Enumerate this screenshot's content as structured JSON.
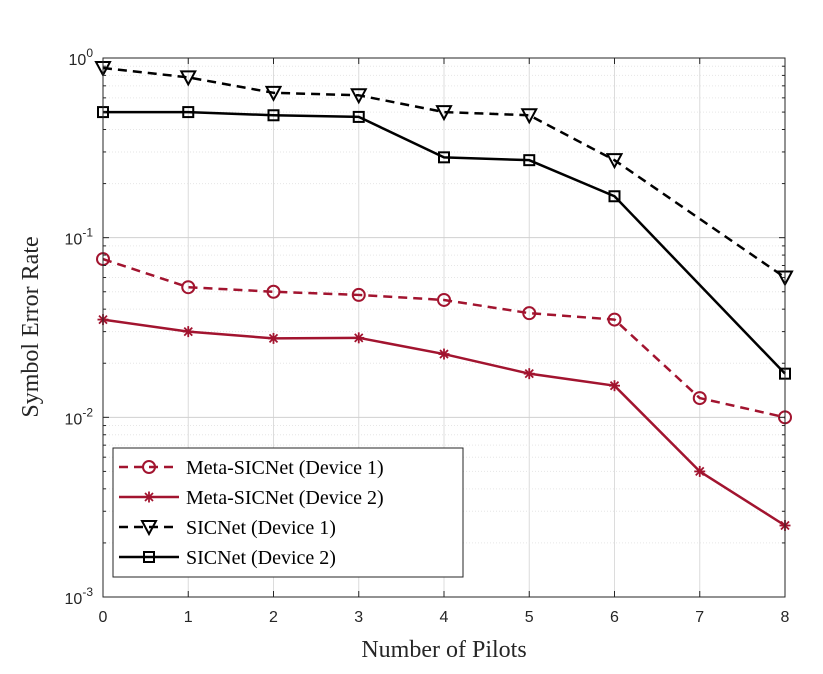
{
  "chart_data": {
    "type": "line",
    "title": "",
    "xlabel": "Number of Pilots",
    "ylabel": "Symbol Error Rate",
    "yscale": "log",
    "xlim": [
      0,
      8
    ],
    "ylim": [
      0.001,
      1
    ],
    "grid": true,
    "minor_grid": true,
    "legend_position": "bottom-left",
    "x": [
      0,
      1,
      2,
      3,
      4,
      5,
      6,
      7,
      8
    ],
    "x_ticks": [
      "0",
      "1",
      "2",
      "3",
      "4",
      "5",
      "6",
      "7",
      "8"
    ],
    "y_ticks": [
      {
        "value": 1,
        "base": "10",
        "exp": "0"
      },
      {
        "value": 0.1,
        "base": "10",
        "exp": "-1"
      },
      {
        "value": 0.01,
        "base": "10",
        "exp": "-2"
      },
      {
        "value": 0.001,
        "base": "10",
        "exp": "-3"
      }
    ],
    "series": [
      {
        "name": "Meta-SICNet (Device 1)",
        "color": "#a2142f",
        "line_style": "dashed",
        "marker": "circle",
        "values": [
          0.076,
          0.053,
          0.05,
          0.048,
          0.045,
          0.038,
          0.035,
          0.0128,
          0.01
        ]
      },
      {
        "name": "Meta-SICNet (Device 2)",
        "color": "#a2142f",
        "line_style": "solid",
        "marker": "asterisk",
        "values": [
          0.035,
          0.03,
          0.0275,
          0.0277,
          0.0225,
          0.0175,
          0.015,
          0.005,
          0.0025
        ]
      },
      {
        "name": "SICNet (Device 1)",
        "color": "#000000",
        "line_style": "dashed",
        "marker": "triangle-down",
        "values": [
          0.88,
          0.78,
          0.64,
          0.62,
          0.5,
          0.48,
          0.27,
          null,
          0.06
        ]
      },
      {
        "name": "SICNet (Device 2)",
        "color": "#000000",
        "line_style": "solid",
        "marker": "square",
        "values": [
          0.5,
          0.5,
          0.48,
          0.47,
          0.28,
          0.27,
          0.17,
          null,
          0.0175
        ]
      }
    ]
  }
}
